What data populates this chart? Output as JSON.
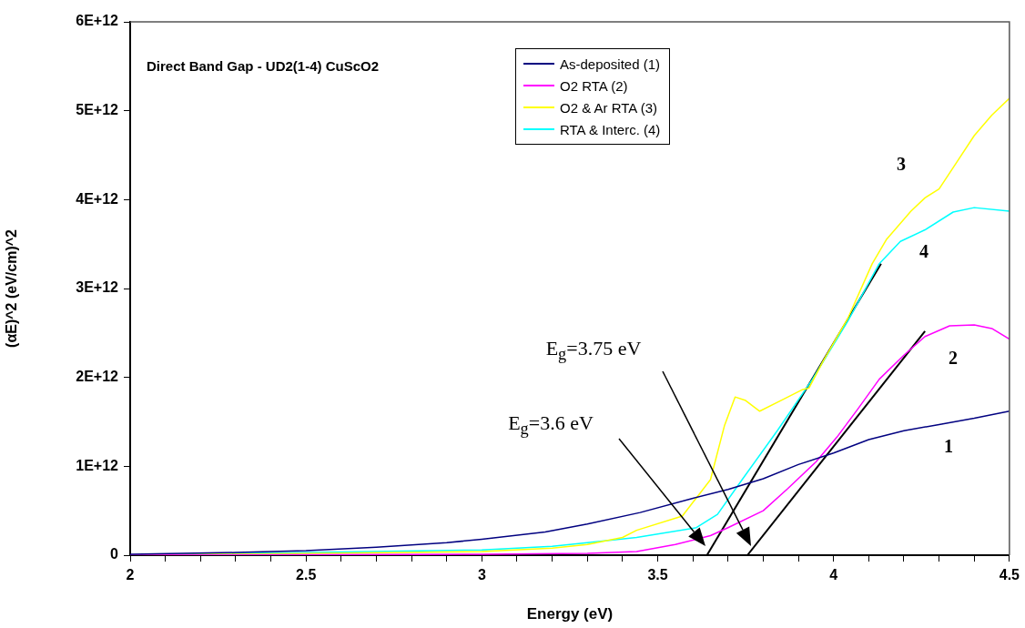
{
  "chart_data": {
    "type": "line",
    "title": "Direct Band Gap - UD2(1-4) CuScO2",
    "xlabel": "Energy (eV)",
    "ylabel": "(αE)^2 (eV/cm)^2",
    "xlim": [
      2,
      4.5
    ],
    "ylim": [
      0,
      6000000000000.0
    ],
    "xticks": [
      2,
      {
        "value": 2.1,
        "label": null
      },
      {
        "value": 2.2,
        "label": null
      },
      {
        "value": 2.3,
        "label": null
      },
      {
        "value": 2.4,
        "label": null
      },
      2.5,
      {
        "value": 2.6,
        "label": null
      },
      {
        "value": 2.7,
        "label": null
      },
      {
        "value": 2.8,
        "label": null
      },
      {
        "value": 2.9,
        "label": null
      },
      3,
      {
        "value": 3.1,
        "label": null
      },
      {
        "value": 3.2,
        "label": null
      },
      {
        "value": 3.3,
        "label": null
      },
      {
        "value": 3.4,
        "label": null
      },
      3.5,
      {
        "value": 3.6,
        "label": null
      },
      {
        "value": 3.7,
        "label": null
      },
      {
        "value": 3.8,
        "label": null
      },
      {
        "value": 3.9,
        "label": null
      },
      4,
      {
        "value": 4.1,
        "label": null
      },
      {
        "value": 4.2,
        "label": null
      },
      {
        "value": 4.3,
        "label": null
      },
      {
        "value": 4.4,
        "label": null
      },
      4.5
    ],
    "yticks": [
      0,
      {
        "value": 1000000000000.0,
        "label": "1E+12"
      },
      {
        "value": 2000000000000.0,
        "label": "2E+12"
      },
      {
        "value": 3000000000000.0,
        "label": "3E+12"
      },
      {
        "value": 4000000000000.0,
        "label": "4E+12"
      },
      {
        "value": 5000000000000.0,
        "label": "5E+12"
      },
      {
        "value": 6000000000000.0,
        "label": "6E+12"
      }
    ],
    "grid": false,
    "legend": "top",
    "marker": "none",
    "line_style": "solid",
    "series": [
      {
        "name": "As-deposited (1)",
        "color": "#000080",
        "x": [
          2,
          2.3,
          2.5,
          2.7,
          2.9,
          3,
          3.18,
          3.3,
          3.45,
          3.6,
          3.7,
          3.8,
          3.9,
          4,
          4.1,
          4.2,
          4.3,
          4.4,
          4.5
        ],
        "values": [
          10000000000.0,
          30000000000.0,
          50000000000.0,
          90000000000.0,
          140000000000.0,
          180000000000.0,
          260000000000.0,
          350000000000.0,
          480000000000.0,
          640000000000.0,
          740000000000.0,
          860000000000.0,
          1020000000000.0,
          1150000000000.0,
          1300000000000.0,
          1400000000000.0,
          1470000000000.0,
          1540000000000.0,
          1620000000000.0
        ]
      },
      {
        "name": "O2 RTA (2)",
        "color": "#ff00ff",
        "x": [
          2,
          3,
          3.3,
          3.44,
          3.55,
          3.65,
          3.7,
          3.8,
          3.87,
          3.95,
          4.01,
          4.07,
          4.13,
          4.2,
          4.26,
          4.33,
          4.4,
          4.45,
          4.5
        ],
        "values": [
          0,
          10000000000.0,
          20000000000.0,
          40000000000.0,
          120000000000.0,
          220000000000.0,
          310000000000.0,
          500000000000.0,
          750000000000.0,
          1050000000000.0,
          1330000000000.0,
          1650000000000.0,
          1980000000000.0,
          2250000000000.0,
          2460000000000.0,
          2580000000000.0,
          2590000000000.0,
          2550000000000.0,
          2430000000000.0
        ]
      },
      {
        "name": "O2 & Ar RTA (3)",
        "color": "#ffff00",
        "x": [
          2,
          3,
          3.2,
          3.3,
          3.4,
          3.44,
          3.57,
          3.65,
          3.69,
          3.72,
          3.75,
          3.79,
          3.85,
          3.91,
          3.93,
          3.97,
          4.04,
          4.11,
          4.15,
          4.22,
          4.26,
          4.3,
          4.35,
          4.4,
          4.45,
          4.5
        ],
        "values": [
          0,
          40000000000.0,
          80000000000.0,
          120000000000.0,
          200000000000.0,
          280000000000.0,
          440000000000.0,
          850000000000.0,
          1460000000000.0,
          1780000000000.0,
          1740000000000.0,
          1620000000000.0,
          1740000000000.0,
          1860000000000.0,
          1880000000000.0,
          2180000000000.0,
          2660000000000.0,
          3280000000000.0,
          3550000000000.0,
          3870000000000.0,
          4020000000000.0,
          4120000000000.0,
          4420000000000.0,
          4720000000000.0,
          4950000000000.0,
          5140000000000.0
        ]
      },
      {
        "name": "RTA & Interc. (4)",
        "color": "#00ffff",
        "x": [
          2,
          3,
          3.2,
          3.3,
          3.44,
          3.61,
          3.67,
          3.74,
          3.84,
          3.94,
          4.04,
          4.13,
          4.19,
          4.26,
          4.34,
          4.4,
          4.5
        ],
        "values": [
          0,
          60000000000.0,
          100000000000.0,
          140000000000.0,
          200000000000.0,
          310000000000.0,
          460000000000.0,
          850000000000.0,
          1400000000000.0,
          1980000000000.0,
          2630000000000.0,
          3280000000000.0,
          3530000000000.0,
          3660000000000.0,
          3860000000000.0,
          3910000000000.0,
          3870000000000.0
        ]
      },
      {
        "type": "line",
        "color": "#000000",
        "x": [
          3.64,
          4.135
        ],
        "values": [
          0,
          3280000000000.0
        ]
      },
      {
        "type": "line",
        "color": "#000000",
        "x": [
          3.755,
          4.26
        ],
        "values": [
          0,
          2520000000000.0
        ]
      }
    ],
    "annotations": [
      "E$_{g}$=3.6 eV",
      "E$_{g}$=3.75 eV",
      "3",
      "4",
      "2",
      "1"
    ]
  }
}
